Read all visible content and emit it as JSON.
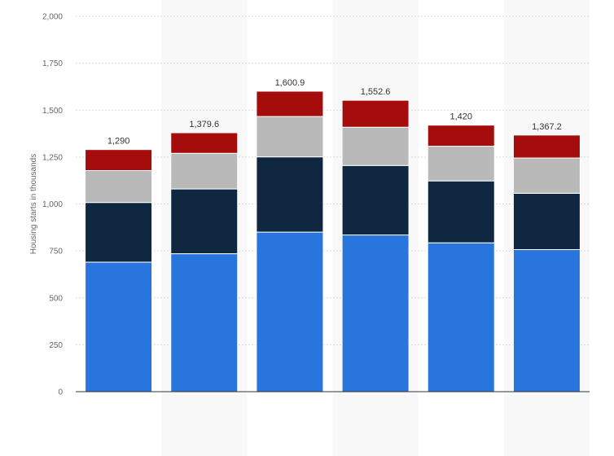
{
  "chart_data": {
    "type": "bar",
    "stacked": true,
    "ylabel": "Housing starts in thousands",
    "ylim": [
      0,
      2000
    ],
    "yticks": [
      0,
      250,
      500,
      750,
      1000,
      1250,
      1500,
      1750,
      2000
    ],
    "ytick_labels": [
      "0",
      "250",
      "500",
      "750",
      "1,000",
      "1,250",
      "1,500",
      "1,750",
      "2,000"
    ],
    "grid": true,
    "legend": "none",
    "bar_count": 6,
    "series": [
      {
        "color": "#2876dd",
        "values": [
          690,
          735,
          850,
          835,
          793,
          757
        ]
      },
      {
        "color": "#0f2740",
        "values": [
          318,
          345,
          401,
          370,
          330,
          300
        ]
      },
      {
        "color": "#b9b9b9",
        "values": [
          170,
          190,
          215,
          204,
          185,
          188
        ]
      },
      {
        "color": "#a50c0c",
        "values": [
          112,
          109.6,
          134.9,
          143.6,
          112,
          122.2
        ]
      }
    ],
    "totals": [
      1290,
      1379.6,
      1600.9,
      1552.6,
      1420,
      1367.2
    ],
    "total_labels": [
      "1,290",
      "1,379.6",
      "1,600.9",
      "1,552.6",
      "1,420",
      "1,367.2"
    ]
  }
}
